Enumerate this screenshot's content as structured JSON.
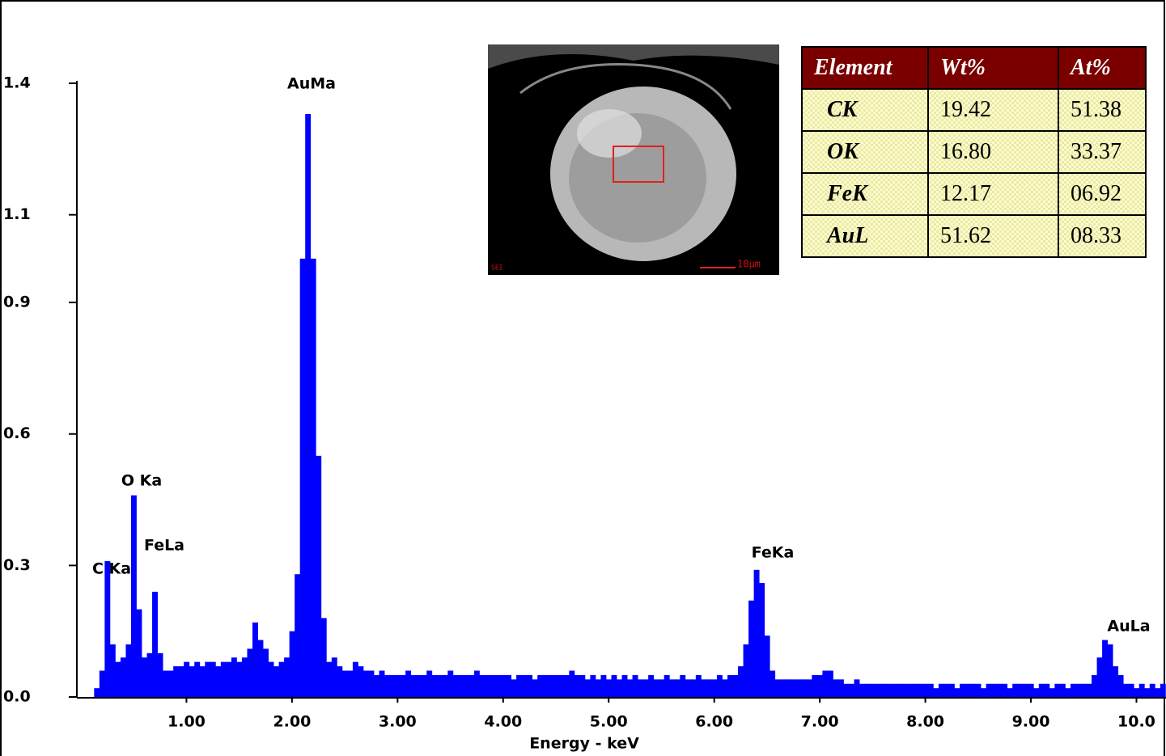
{
  "chart_data": {
    "type": "spectrum",
    "xlabel": "Energy - keV",
    "color": "#0000ff",
    "annotations": [
      "AuMa",
      "O Ka",
      "FeLa",
      "C Ka",
      "FeKa",
      "AuLa"
    ],
    "xlim": [
      0,
      10.28
    ],
    "ylim": [
      0,
      1.4
    ],
    "xticks": [
      {
        "value": 1,
        "label": "1.00"
      },
      {
        "value": 2,
        "label": "2.00"
      },
      {
        "value": 3,
        "label": "3.00"
      },
      {
        "value": 4,
        "label": "4.00"
      },
      {
        "value": 5,
        "label": "5.00"
      },
      {
        "value": 6,
        "label": "6.00"
      },
      {
        "value": 7,
        "label": "7.00"
      },
      {
        "value": 8,
        "label": "8.00"
      },
      {
        "value": 9,
        "label": "9.00"
      },
      {
        "value": 10,
        "label": "10.0"
      }
    ],
    "yticks": [
      {
        "value": 0,
        "label": "0.0"
      },
      0.3,
      0.6,
      0.9,
      1.1,
      1.4
    ],
    "x": [
      0.15,
      0.2,
      0.25,
      0.3,
      0.35,
      0.4,
      0.45,
      0.5,
      0.55,
      0.6,
      0.65,
      0.7,
      0.75,
      0.8,
      0.85,
      0.9,
      0.95,
      1,
      1.05,
      1.1,
      1.15,
      1.2,
      1.25,
      1.3,
      1.35,
      1.4,
      1.45,
      1.5,
      1.55,
      1.6,
      1.65,
      1.7,
      1.75,
      1.8,
      1.85,
      1.9,
      1.95,
      2,
      2.05,
      2.1,
      2.15,
      2.2,
      2.25,
      2.3,
      2.35,
      2.4,
      2.45,
      2.5,
      2.55,
      2.6,
      2.65,
      2.7,
      2.75,
      2.8,
      2.85,
      2.9,
      2.95,
      3,
      3.05,
      3.1,
      3.15,
      3.2,
      3.25,
      3.3,
      3.35,
      3.4,
      3.45,
      3.5,
      3.55,
      3.6,
      3.65,
      3.7,
      3.75,
      3.8,
      3.85,
      3.9,
      3.95,
      4,
      4.05,
      4.1,
      4.15,
      4.2,
      4.25,
      4.3,
      4.35,
      4.4,
      4.45,
      4.5,
      4.55,
      4.6,
      4.65,
      4.7,
      4.75,
      4.8,
      4.85,
      4.9,
      4.95,
      5,
      5.05,
      5.1,
      5.15,
      5.2,
      5.25,
      5.3,
      5.35,
      5.4,
      5.45,
      5.5,
      5.55,
      5.6,
      5.65,
      5.7,
      5.75,
      5.8,
      5.85,
      5.9,
      5.95,
      6,
      6.05,
      6.1,
      6.15,
      6.2,
      6.25,
      6.3,
      6.35,
      6.4,
      6.45,
      6.5,
      6.55,
      6.6,
      6.65,
      6.7,
      6.75,
      6.8,
      6.85,
      6.9,
      6.95,
      7,
      7.05,
      7.1,
      7.15,
      7.2,
      7.25,
      7.3,
      7.35,
      7.4,
      7.45,
      7.5,
      7.55,
      7.6,
      7.65,
      7.7,
      7.75,
      7.8,
      7.85,
      7.9,
      7.95,
      8,
      8.05,
      8.1,
      8.15,
      8.2,
      8.25,
      8.3,
      8.35,
      8.4,
      8.45,
      8.5,
      8.55,
      8.6,
      8.65,
      8.7,
      8.75,
      8.8,
      8.85,
      8.9,
      8.95,
      9,
      9.05,
      9.1,
      9.15,
      9.2,
      9.25,
      9.3,
      9.35,
      9.4,
      9.45,
      9.5,
      9.55,
      9.6,
      9.65,
      9.7,
      9.75,
      9.8,
      9.85,
      9.9,
      9.95,
      10,
      10.05,
      10.1,
      10.15,
      10.2,
      10.25
    ],
    "values": [
      0.02,
      0.06,
      0.31,
      0.12,
      0.08,
      0.09,
      0.12,
      0.46,
      0.2,
      0.09,
      0.1,
      0.24,
      0.1,
      0.06,
      0.06,
      0.07,
      0.07,
      0.08,
      0.07,
      0.08,
      0.07,
      0.08,
      0.08,
      0.07,
      0.08,
      0.08,
      0.09,
      0.08,
      0.09,
      0.11,
      0.17,
      0.13,
      0.11,
      0.08,
      0.07,
      0.08,
      0.09,
      0.15,
      0.28,
      1.0,
      1.33,
      1.0,
      0.55,
      0.18,
      0.08,
      0.09,
      0.07,
      0.06,
      0.06,
      0.08,
      0.07,
      0.06,
      0.06,
      0.05,
      0.06,
      0.05,
      0.05,
      0.05,
      0.05,
      0.06,
      0.05,
      0.05,
      0.05,
      0.06,
      0.05,
      0.05,
      0.05,
      0.06,
      0.05,
      0.05,
      0.05,
      0.05,
      0.06,
      0.05,
      0.05,
      0.05,
      0.05,
      0.05,
      0.05,
      0.04,
      0.05,
      0.05,
      0.05,
      0.04,
      0.05,
      0.05,
      0.05,
      0.05,
      0.05,
      0.05,
      0.06,
      0.05,
      0.05,
      0.04,
      0.05,
      0.04,
      0.05,
      0.04,
      0.05,
      0.04,
      0.05,
      0.04,
      0.05,
      0.04,
      0.04,
      0.05,
      0.04,
      0.04,
      0.05,
      0.04,
      0.04,
      0.05,
      0.04,
      0.04,
      0.05,
      0.04,
      0.04,
      0.04,
      0.05,
      0.04,
      0.05,
      0.05,
      0.07,
      0.12,
      0.22,
      0.29,
      0.26,
      0.14,
      0.06,
      0.04,
      0.04,
      0.04,
      0.04,
      0.04,
      0.04,
      0.04,
      0.05,
      0.05,
      0.06,
      0.06,
      0.04,
      0.04,
      0.03,
      0.03,
      0.04,
      0.03,
      0.03,
      0.03,
      0.03,
      0.03,
      0.03,
      0.03,
      0.03,
      0.03,
      0.03,
      0.03,
      0.03,
      0.03,
      0.03,
      0.02,
      0.03,
      0.03,
      0.03,
      0.02,
      0.03,
      0.03,
      0.03,
      0.03,
      0.02,
      0.03,
      0.03,
      0.03,
      0.03,
      0.02,
      0.03,
      0.03,
      0.03,
      0.03,
      0.02,
      0.03,
      0.03,
      0.02,
      0.03,
      0.03,
      0.02,
      0.03,
      0.03,
      0.03,
      0.03,
      0.05,
      0.09,
      0.13,
      0.12,
      0.07,
      0.05,
      0.03,
      0.03,
      0.02,
      0.03,
      0.02,
      0.03,
      0.02,
      0.03
    ]
  },
  "inset": {
    "mode": "SEI",
    "scale": "10µm"
  },
  "table": {
    "header": [
      "Element",
      "Wt%",
      "At%"
    ],
    "rows": [
      [
        "CK",
        "19.42",
        "51.38"
      ],
      [
        "OK",
        "16.80",
        "33.37"
      ],
      [
        "FeK",
        "12.17",
        "06.92"
      ],
      [
        "AuL",
        "51.62",
        "08.33"
      ]
    ]
  }
}
